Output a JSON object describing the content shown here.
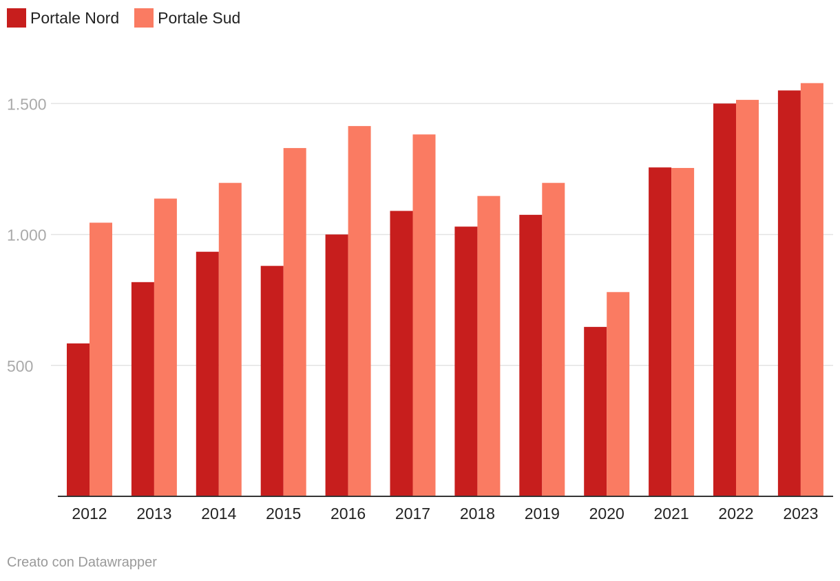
{
  "colors": {
    "nord": "#c71e1d",
    "sud": "#fa7b62",
    "grid": "#e3e3e3",
    "axis": "#333333",
    "tick_label_y": "#aaaaaa",
    "tick_label_x": "#222222"
  },
  "legend": [
    {
      "label": "Portale Nord",
      "color": "#c71e1d"
    },
    {
      "label": "Portale Sud",
      "color": "#fa7b62"
    }
  ],
  "credit": "Creato con Datawrapper",
  "chart_data": {
    "type": "bar",
    "categories": [
      "2012",
      "2013",
      "2014",
      "2015",
      "2016",
      "2017",
      "2018",
      "2019",
      "2020",
      "2021",
      "2022",
      "2023"
    ],
    "series": [
      {
        "name": "Portale Nord",
        "values": [
          584,
          818,
          934,
          880,
          1000,
          1090,
          1030,
          1075,
          647,
          1256,
          1500,
          1550
        ]
      },
      {
        "name": "Portale Sud",
        "values": [
          1045,
          1137,
          1197,
          1330,
          1414,
          1382,
          1147,
          1197,
          780,
          1254,
          1514,
          1578
        ]
      }
    ],
    "yticks": [
      500,
      1000,
      1500
    ],
    "ytick_labels": [
      "500",
      "1.000",
      "1.500"
    ],
    "ylim": [
      0,
      1650
    ],
    "grid": true,
    "legend_position": "top-left",
    "title": "",
    "xlabel": "",
    "ylabel": ""
  }
}
